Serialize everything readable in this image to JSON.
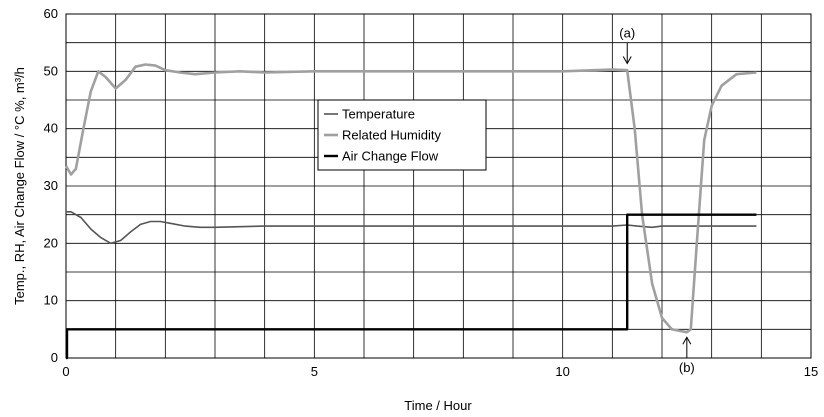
{
  "chart_data": {
    "type": "line",
    "title": "",
    "xlabel": "Time / Hour",
    "ylabel": "Temp., RH, Air Change Flow / °C %, m³/h",
    "xlim": [
      0,
      15
    ],
    "ylim": [
      0,
      60
    ],
    "x_ticks": [
      "0",
      "5",
      "10",
      "15"
    ],
    "y_ticks": [
      "0",
      "10",
      "20",
      "30",
      "40",
      "50",
      "60"
    ],
    "grid": true,
    "legend_position": "center",
    "series": [
      {
        "name": "Temperature",
        "color": "#555555",
        "x": [
          0,
          0.1,
          0.3,
          0.5,
          0.7,
          0.9,
          1.1,
          1.3,
          1.5,
          1.7,
          1.9,
          2.1,
          2.4,
          2.7,
          3.0,
          4.0,
          5.0,
          6.0,
          7.0,
          8.0,
          9.0,
          10.0,
          11.0,
          11.3,
          11.5,
          11.8,
          12.0,
          12.5,
          13.0,
          13.9
        ],
        "y": [
          25.5,
          25.5,
          24.5,
          22.5,
          21,
          20,
          20.5,
          22,
          23.3,
          23.8,
          23.8,
          23.5,
          23,
          22.8,
          22.8,
          23,
          23,
          23,
          23,
          23,
          23,
          23,
          23,
          23.2,
          23,
          22.8,
          23,
          23,
          23,
          23
        ]
      },
      {
        "name": "Related Humidity",
        "color": "#a0a0a0",
        "x": [
          0,
          0.1,
          0.2,
          0.35,
          0.5,
          0.65,
          0.8,
          1.0,
          1.2,
          1.4,
          1.6,
          1.8,
          2.0,
          2.3,
          2.6,
          3.0,
          3.5,
          4.0,
          5.0,
          6.0,
          7.0,
          8.0,
          9.0,
          10.0,
          11.0,
          11.3,
          11.45,
          11.6,
          11.8,
          12.0,
          12.2,
          12.5,
          12.58,
          12.7,
          12.85,
          13.0,
          13.2,
          13.5,
          13.9
        ],
        "y": [
          33.5,
          32,
          33,
          40,
          46.5,
          50,
          49,
          47,
          48.5,
          50.8,
          51.2,
          51,
          50.2,
          49.8,
          49.5,
          49.8,
          50,
          49.8,
          50,
          50,
          50,
          50,
          50,
          50,
          50.3,
          50.2,
          40,
          25,
          13,
          7,
          5,
          4.5,
          5,
          20,
          38,
          44,
          47.5,
          49.5,
          49.8
        ]
      },
      {
        "name": "Air Change Flow",
        "color": "#000000",
        "x": [
          0,
          0.02,
          0.02,
          11.3,
          11.3,
          13.9
        ],
        "y": [
          0,
          0,
          5,
          5,
          25,
          25
        ]
      }
    ],
    "annotations": [
      {
        "label": "(a)",
        "x": 11.3,
        "y": 50.5,
        "position": "above"
      },
      {
        "label": "(b)",
        "x": 12.5,
        "y": 4.5,
        "position": "below"
      }
    ]
  }
}
